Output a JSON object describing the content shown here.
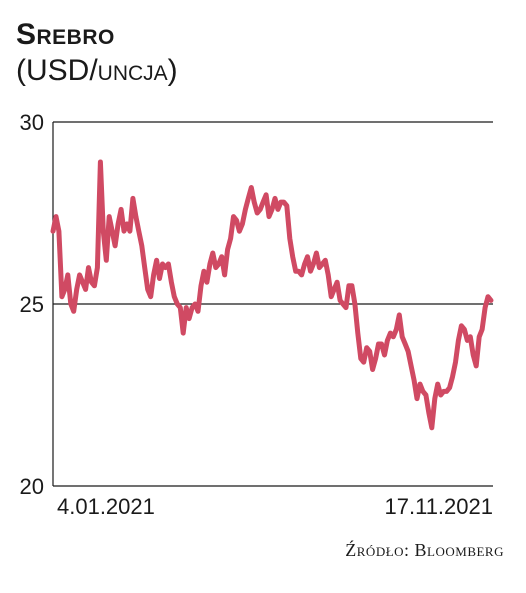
{
  "chart_data": {
    "type": "line",
    "title": "Srebro",
    "subtitle": "(USD/uncja)",
    "source": "Źródło: Bloomberg",
    "series_color": "#d04a63",
    "ylim": [
      20,
      30
    ],
    "yticks": [
      30,
      25,
      20
    ],
    "xlabels": {
      "start": "4.01.2021",
      "end": "17.11.2021"
    },
    "grid": "horizontal at 25 and 30",
    "series": [
      {
        "x_range": [
          "2021-01-04",
          "2021-11-17"
        ],
        "values": [
          27.0,
          27.4,
          27.0,
          25.2,
          25.4,
          25.8,
          25.0,
          24.8,
          25.4,
          25.8,
          25.6,
          25.4,
          26.0,
          25.6,
          25.5,
          26.0,
          28.9,
          27.0,
          26.2,
          27.4,
          27.0,
          26.6,
          27.2,
          27.6,
          27.0,
          27.2,
          27.0,
          27.9,
          27.4,
          27.0,
          26.6,
          26.0,
          25.4,
          25.2,
          25.8,
          26.2,
          25.7,
          26.1,
          26.0,
          26.1,
          25.6,
          25.2,
          25.0,
          24.9,
          24.2,
          24.9,
          24.6,
          24.9,
          25.0,
          24.8,
          25.5,
          25.9,
          25.6,
          26.1,
          26.4,
          26.0,
          26.1,
          26.3,
          25.8,
          26.5,
          26.8,
          27.4,
          27.3,
          27.0,
          27.2,
          27.6,
          27.9,
          28.2,
          27.8,
          27.5,
          27.6,
          27.8,
          28.0,
          27.4,
          27.6,
          27.9,
          27.6,
          27.8,
          27.8,
          27.7,
          26.8,
          26.3,
          25.9,
          25.9,
          25.8,
          26.1,
          26.3,
          25.9,
          26.1,
          26.4,
          26.0,
          26.1,
          26.2,
          25.8,
          25.2,
          25.4,
          25.6,
          25.1,
          25.0,
          24.9,
          25.5,
          25.5,
          25.0,
          24.2,
          23.5,
          23.4,
          23.8,
          23.7,
          23.2,
          23.5,
          23.9,
          23.9,
          23.6,
          24.0,
          24.2,
          24.1,
          24.3,
          24.7,
          24.1,
          23.9,
          23.7,
          23.3,
          22.9,
          22.4,
          22.8,
          22.6,
          22.5,
          22.0,
          21.6,
          22.4,
          22.8,
          22.5,
          22.6,
          22.6,
          22.7,
          23.0,
          23.4,
          24.0,
          24.4,
          24.3,
          24.0,
          24.1,
          23.6,
          23.3,
          24.1,
          24.3,
          24.9,
          25.2,
          25.1
        ]
      }
    ]
  }
}
